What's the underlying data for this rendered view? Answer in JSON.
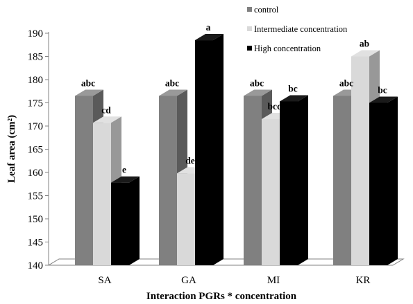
{
  "chart_data": {
    "type": "bar",
    "title": "",
    "xlabel": "Interaction  PGRs * concentration",
    "ylabel": "Leaf area (cm²)",
    "ylim": [
      140,
      190
    ],
    "yticks": [
      140,
      145,
      150,
      155,
      160,
      165,
      170,
      175,
      180,
      185,
      190
    ],
    "grid": false,
    "legend_position": "top-right",
    "style": "3d",
    "categories": [
      "SA",
      "GA",
      "MI",
      "KR"
    ],
    "series": [
      {
        "name": "control",
        "color": "#808080",
        "values": [
          176.5,
          176.5,
          176.5,
          176.5
        ],
        "labels": [
          "abc",
          "abc",
          "abc",
          "abc"
        ]
      },
      {
        "name": "Intermediate concentration",
        "color": "#d9d9d9",
        "values": [
          170.7,
          159.8,
          171.5,
          185.0
        ],
        "labels": [
          "cd",
          "de",
          "bcd",
          "ab"
        ]
      },
      {
        "name": "High concentration",
        "color": "#000000",
        "values": [
          157.8,
          188.5,
          175.3,
          175.0
        ],
        "labels": [
          "e",
          "a",
          "bc",
          "bc"
        ]
      }
    ]
  }
}
